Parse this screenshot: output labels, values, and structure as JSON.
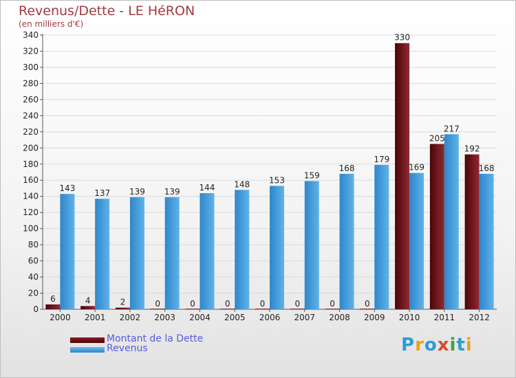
{
  "title": "Revenus/Dette - LE HéRON",
  "subtitle": "(en milliers d'€)",
  "logo": {
    "text": "Proxiti",
    "letters": [
      "P",
      "r",
      "o",
      "x",
      "i",
      "t",
      "i"
    ],
    "colors": [
      "#2e9bd6",
      "#e9a21c",
      "#2e9bd6",
      "#d94a2a",
      "#3aa53a",
      "#2e9bd6",
      "#e9a21c"
    ]
  },
  "colors": {
    "dette": "#6b0b12",
    "revenus": "#4aa3e0",
    "axis_text": "#222222"
  },
  "chart_data": {
    "type": "bar",
    "title": "Revenus/Dette - LE HéRON",
    "ylabel": "(en milliers d'€)",
    "categories": [
      "2000",
      "2001",
      "2002",
      "2003",
      "2004",
      "2005",
      "2006",
      "2007",
      "2008",
      "2009",
      "2010",
      "2011",
      "2012"
    ],
    "series": [
      {
        "name": "Montant de la Dette",
        "values": [
          6,
          4,
          2,
          0,
          0,
          0,
          0,
          0,
          0,
          0,
          330,
          205,
          192
        ]
      },
      {
        "name": "Revenus",
        "values": [
          143,
          137,
          139,
          139,
          144,
          148,
          153,
          159,
          168,
          179,
          169,
          217,
          168
        ]
      }
    ],
    "ylim": [
      0,
      340
    ],
    "ytick_step": 20,
    "grid": true,
    "legend": "bottom-left"
  }
}
